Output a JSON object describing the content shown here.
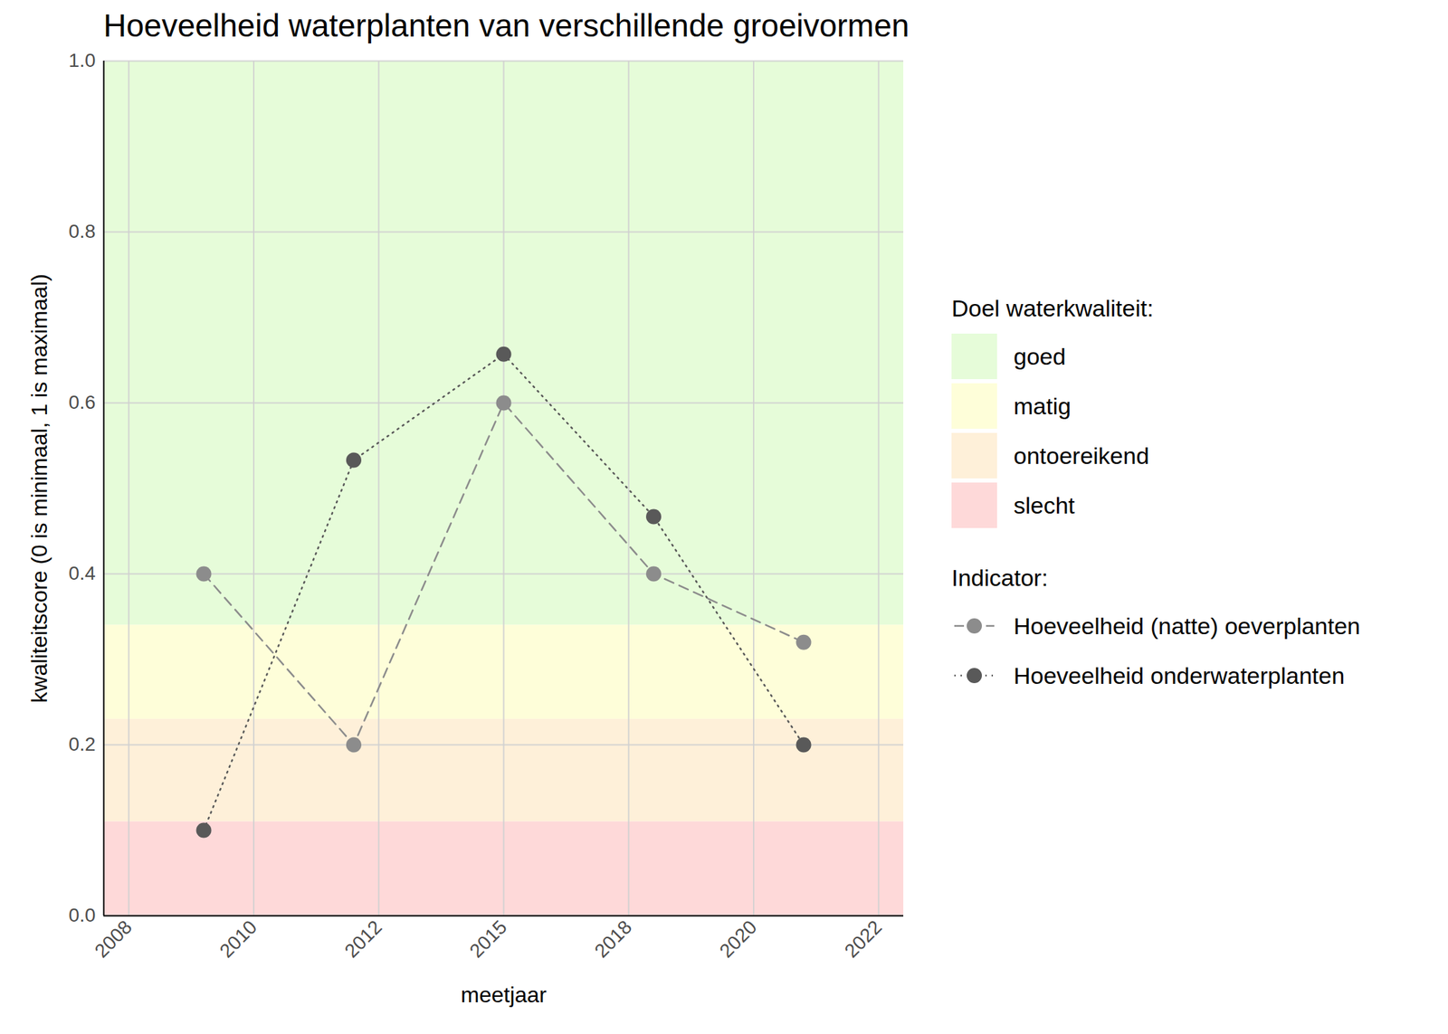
{
  "chart_data": {
    "type": "line",
    "title": "Hoeveelheid waterplanten van verschillende groeivormen",
    "x_label": "meetjaar",
    "y_label": "kwaliteitscore (0 is minimaal, 1 is maximaal)",
    "x": [
      2009,
      2012,
      2015,
      2018,
      2021
    ],
    "series": [
      {
        "name": "Hoeveelheid (natte) oeverplanten",
        "color": "#8c8c8c",
        "line_style": "dashed",
        "marker": "circle",
        "values": [
          0.4,
          0.2,
          0.6,
          0.4,
          0.32
        ]
      },
      {
        "name": "Hoeveelheid onderwaterplanten",
        "color": "#595959",
        "line_style": "dotted",
        "marker": "circle",
        "values": [
          0.1,
          0.533,
          0.657,
          0.467,
          0.2
        ]
      }
    ],
    "series_title": "Indicator:",
    "bands_title": "Doel waterkwaliteit:",
    "bands": [
      {
        "name": "goed",
        "color": "#e6fcd9",
        "from": 0.34,
        "to": 1.0
      },
      {
        "name": "matig",
        "color": "#fefed9",
        "from": 0.23,
        "to": 0.34
      },
      {
        "name": "ontoereikend",
        "color": "#fef0d9",
        "from": 0.11,
        "to": 0.23
      },
      {
        "name": "slecht",
        "color": "#fed9d9",
        "from": 0.0,
        "to": 0.11
      }
    ],
    "xlim": [
      2007,
      2023
    ],
    "xticks": [
      {
        "value": 2007.5,
        "label": "2008"
      },
      2010,
      {
        "value": 2012.5,
        "label": "2012"
      },
      2015,
      {
        "value": 2017.5,
        "label": "2018"
      },
      2020,
      {
        "value": 2022.5,
        "label": "2022"
      }
    ],
    "ylim": [
      0,
      1
    ],
    "yticks": [
      {
        "value": 0,
        "label": "0.0"
      },
      0.2,
      0.4,
      0.6,
      0.8,
      {
        "value": 1,
        "label": "1.0"
      }
    ],
    "grid": true,
    "legend": "right"
  }
}
